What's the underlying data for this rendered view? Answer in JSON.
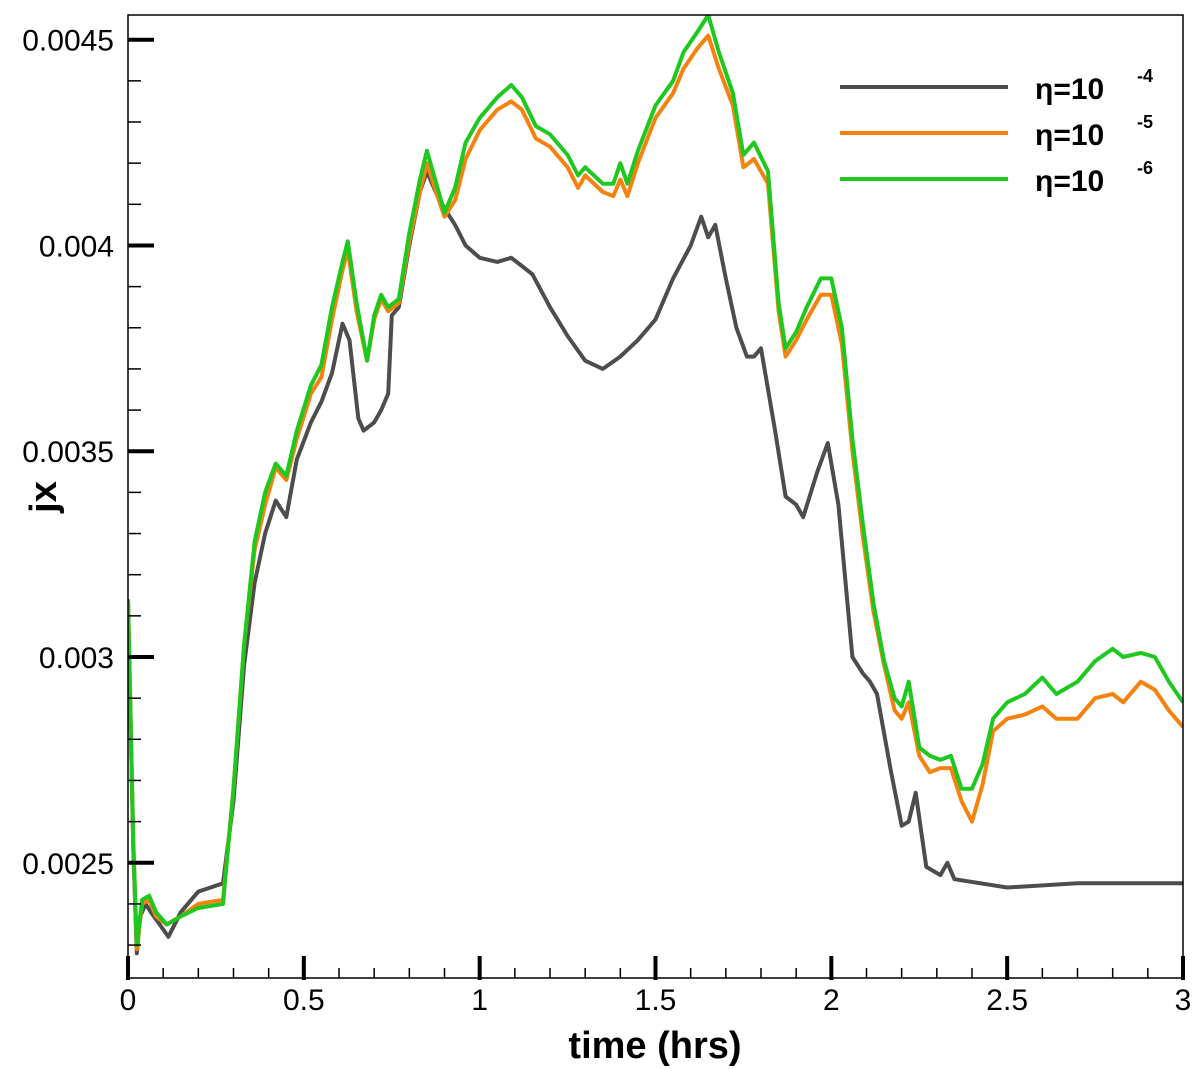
{
  "chart_data": {
    "type": "line",
    "xlabel": "time (hrs)",
    "ylabel": "jx",
    "xlim": [
      0,
      3
    ],
    "ylim": [
      0.00222,
      0.00456
    ],
    "x_ticks": [
      0,
      0.5,
      1,
      1.5,
      2,
      2.5,
      3
    ],
    "x_tick_labels": [
      "0",
      "0.5",
      "1",
      "1.5",
      "2",
      "2.5",
      "3"
    ],
    "y_ticks": [
      0.0025,
      0.003,
      0.0035,
      0.004,
      0.0045
    ],
    "y_tick_labels": [
      "0.0025",
      "0.003",
      "0.0035",
      "0.004",
      "0.0045"
    ],
    "grid": false,
    "legend_position": "top-right",
    "series": [
      {
        "name_base": "η=10",
        "name_exp": "-4",
        "color": "#4d4d4d",
        "points": [
          [
            0,
            0.00314
          ],
          [
            0.015,
            0.00253
          ],
          [
            0.025,
            0.00228
          ],
          [
            0.035,
            0.00237
          ],
          [
            0.05,
            0.0024
          ],
          [
            0.065,
            0.00238
          ],
          [
            0.09,
            0.00235
          ],
          [
            0.115,
            0.00232
          ],
          [
            0.15,
            0.00238
          ],
          [
            0.2,
            0.00243
          ],
          [
            0.27,
            0.00245
          ],
          [
            0.3,
            0.00265
          ],
          [
            0.33,
            0.00298
          ],
          [
            0.36,
            0.00318
          ],
          [
            0.39,
            0.0033
          ],
          [
            0.42,
            0.00338
          ],
          [
            0.45,
            0.00334
          ],
          [
            0.48,
            0.00348
          ],
          [
            0.52,
            0.00357
          ],
          [
            0.55,
            0.00362
          ],
          [
            0.58,
            0.00369
          ],
          [
            0.61,
            0.00381
          ],
          [
            0.63,
            0.00377
          ],
          [
            0.655,
            0.00358
          ],
          [
            0.67,
            0.00355
          ],
          [
            0.7,
            0.00357
          ],
          [
            0.72,
            0.0036
          ],
          [
            0.74,
            0.00364
          ],
          [
            0.75,
            0.00383
          ],
          [
            0.77,
            0.00385
          ],
          [
            0.8,
            0.004
          ],
          [
            0.83,
            0.00413
          ],
          [
            0.85,
            0.00418
          ],
          [
            0.88,
            0.00412
          ],
          [
            0.9,
            0.00409
          ],
          [
            0.93,
            0.00405
          ],
          [
            0.96,
            0.004
          ],
          [
            1.0,
            0.00397
          ],
          [
            1.05,
            0.00396
          ],
          [
            1.09,
            0.00397
          ],
          [
            1.12,
            0.00395
          ],
          [
            1.15,
            0.00393
          ],
          [
            1.2,
            0.00385
          ],
          [
            1.25,
            0.00378
          ],
          [
            1.3,
            0.00372
          ],
          [
            1.35,
            0.0037
          ],
          [
            1.4,
            0.00373
          ],
          [
            1.45,
            0.00377
          ],
          [
            1.5,
            0.00382
          ],
          [
            1.55,
            0.00392
          ],
          [
            1.6,
            0.004
          ],
          [
            1.63,
            0.00407
          ],
          [
            1.65,
            0.00402
          ],
          [
            1.67,
            0.00405
          ],
          [
            1.7,
            0.00392
          ],
          [
            1.73,
            0.0038
          ],
          [
            1.76,
            0.00373
          ],
          [
            1.78,
            0.00373
          ],
          [
            1.8,
            0.00375
          ],
          [
            1.84,
            0.00355
          ],
          [
            1.87,
            0.00339
          ],
          [
            1.9,
            0.00337
          ],
          [
            1.92,
            0.00334
          ],
          [
            1.96,
            0.00345
          ],
          [
            1.99,
            0.00352
          ],
          [
            2.02,
            0.00337
          ],
          [
            2.06,
            0.003
          ],
          [
            2.09,
            0.00296
          ],
          [
            2.11,
            0.00294
          ],
          [
            2.13,
            0.00291
          ],
          [
            2.17,
            0.00272
          ],
          [
            2.2,
            0.00259
          ],
          [
            2.22,
            0.0026
          ],
          [
            2.24,
            0.00267
          ],
          [
            2.27,
            0.00249
          ],
          [
            2.31,
            0.00247
          ],
          [
            2.33,
            0.0025
          ],
          [
            2.35,
            0.00246
          ],
          [
            2.5,
            0.00244
          ],
          [
            2.7,
            0.00245
          ],
          [
            3.0,
            0.00245
          ]
        ]
      },
      {
        "name_base": "η=10",
        "name_exp": "-5",
        "color": "#f5820f",
        "points": [
          [
            0,
            0.00314
          ],
          [
            0.015,
            0.00255
          ],
          [
            0.025,
            0.00229
          ],
          [
            0.04,
            0.0024
          ],
          [
            0.06,
            0.00241
          ],
          [
            0.08,
            0.00237
          ],
          [
            0.11,
            0.00235
          ],
          [
            0.15,
            0.00237
          ],
          [
            0.2,
            0.0024
          ],
          [
            0.27,
            0.00241
          ],
          [
            0.3,
            0.00268
          ],
          [
            0.33,
            0.00303
          ],
          [
            0.36,
            0.00326
          ],
          [
            0.39,
            0.00337
          ],
          [
            0.42,
            0.00346
          ],
          [
            0.45,
            0.00343
          ],
          [
            0.48,
            0.00353
          ],
          [
            0.52,
            0.00364
          ],
          [
            0.55,
            0.00368
          ],
          [
            0.58,
            0.00382
          ],
          [
            0.61,
            0.00394
          ],
          [
            0.625,
            0.00399
          ],
          [
            0.65,
            0.00384
          ],
          [
            0.68,
            0.00372
          ],
          [
            0.7,
            0.00382
          ],
          [
            0.72,
            0.00387
          ],
          [
            0.74,
            0.00384
          ],
          [
            0.77,
            0.00386
          ],
          [
            0.8,
            0.00401
          ],
          [
            0.83,
            0.00413
          ],
          [
            0.85,
            0.0042
          ],
          [
            0.88,
            0.00412
          ],
          [
            0.9,
            0.00407
          ],
          [
            0.93,
            0.00411
          ],
          [
            0.96,
            0.00421
          ],
          [
            1.0,
            0.00428
          ],
          [
            1.05,
            0.00433
          ],
          [
            1.09,
            0.00435
          ],
          [
            1.12,
            0.00433
          ],
          [
            1.16,
            0.00426
          ],
          [
            1.2,
            0.00424
          ],
          [
            1.25,
            0.00419
          ],
          [
            1.28,
            0.00414
          ],
          [
            1.3,
            0.00417
          ],
          [
            1.35,
            0.00413
          ],
          [
            1.38,
            0.00412
          ],
          [
            1.4,
            0.00416
          ],
          [
            1.42,
            0.00412
          ],
          [
            1.45,
            0.0042
          ],
          [
            1.5,
            0.00431
          ],
          [
            1.55,
            0.00437
          ],
          [
            1.58,
            0.00443
          ],
          [
            1.62,
            0.00448
          ],
          [
            1.65,
            0.00451
          ],
          [
            1.68,
            0.00443
          ],
          [
            1.72,
            0.00434
          ],
          [
            1.75,
            0.00419
          ],
          [
            1.78,
            0.00421
          ],
          [
            1.82,
            0.00415
          ],
          [
            1.85,
            0.00384
          ],
          [
            1.87,
            0.00373
          ],
          [
            1.9,
            0.00377
          ],
          [
            1.93,
            0.00382
          ],
          [
            1.97,
            0.00388
          ],
          [
            2.0,
            0.00388
          ],
          [
            2.03,
            0.00376
          ],
          [
            2.06,
            0.0035
          ],
          [
            2.09,
            0.00329
          ],
          [
            2.12,
            0.00311
          ],
          [
            2.15,
            0.00298
          ],
          [
            2.18,
            0.00287
          ],
          [
            2.2,
            0.00285
          ],
          [
            2.22,
            0.00289
          ],
          [
            2.25,
            0.00276
          ],
          [
            2.28,
            0.00272
          ],
          [
            2.31,
            0.00273
          ],
          [
            2.34,
            0.00273
          ],
          [
            2.37,
            0.00265
          ],
          [
            2.4,
            0.0026
          ],
          [
            2.43,
            0.00269
          ],
          [
            2.46,
            0.00282
          ],
          [
            2.5,
            0.00285
          ],
          [
            2.55,
            0.00286
          ],
          [
            2.6,
            0.00288
          ],
          [
            2.64,
            0.00285
          ],
          [
            2.7,
            0.00285
          ],
          [
            2.75,
            0.0029
          ],
          [
            2.8,
            0.00291
          ],
          [
            2.83,
            0.00289
          ],
          [
            2.88,
            0.00294
          ],
          [
            2.92,
            0.00292
          ],
          [
            2.96,
            0.00287
          ],
          [
            3.0,
            0.00283
          ]
        ]
      },
      {
        "name_base": "η=10",
        "name_exp": "-6",
        "color": "#1ec81e",
        "points": [
          [
            0,
            0.00314
          ],
          [
            0.015,
            0.00255
          ],
          [
            0.025,
            0.0023
          ],
          [
            0.04,
            0.00241
          ],
          [
            0.06,
            0.00242
          ],
          [
            0.08,
            0.00238
          ],
          [
            0.11,
            0.00235
          ],
          [
            0.15,
            0.00237
          ],
          [
            0.2,
            0.00239
          ],
          [
            0.27,
            0.0024
          ],
          [
            0.3,
            0.00268
          ],
          [
            0.33,
            0.00303
          ],
          [
            0.36,
            0.00328
          ],
          [
            0.39,
            0.0034
          ],
          [
            0.42,
            0.00347
          ],
          [
            0.45,
            0.00344
          ],
          [
            0.48,
            0.00355
          ],
          [
            0.52,
            0.00366
          ],
          [
            0.55,
            0.00371
          ],
          [
            0.58,
            0.00385
          ],
          [
            0.61,
            0.00396
          ],
          [
            0.625,
            0.00401
          ],
          [
            0.65,
            0.00386
          ],
          [
            0.68,
            0.00372
          ],
          [
            0.7,
            0.00383
          ],
          [
            0.72,
            0.00388
          ],
          [
            0.74,
            0.00385
          ],
          [
            0.77,
            0.00387
          ],
          [
            0.8,
            0.00403
          ],
          [
            0.83,
            0.00416
          ],
          [
            0.85,
            0.00423
          ],
          [
            0.88,
            0.00414
          ],
          [
            0.9,
            0.00408
          ],
          [
            0.93,
            0.00414
          ],
          [
            0.96,
            0.00425
          ],
          [
            1.0,
            0.00431
          ],
          [
            1.05,
            0.00436
          ],
          [
            1.09,
            0.00439
          ],
          [
            1.12,
            0.00436
          ],
          [
            1.16,
            0.00429
          ],
          [
            1.2,
            0.00427
          ],
          [
            1.25,
            0.00422
          ],
          [
            1.28,
            0.00417
          ],
          [
            1.3,
            0.00419
          ],
          [
            1.35,
            0.00415
          ],
          [
            1.38,
            0.00415
          ],
          [
            1.4,
            0.0042
          ],
          [
            1.42,
            0.00415
          ],
          [
            1.45,
            0.00423
          ],
          [
            1.5,
            0.00434
          ],
          [
            1.55,
            0.0044
          ],
          [
            1.58,
            0.00447
          ],
          [
            1.62,
            0.00452
          ],
          [
            1.65,
            0.00456
          ],
          [
            1.68,
            0.00447
          ],
          [
            1.72,
            0.00437
          ],
          [
            1.75,
            0.00422
          ],
          [
            1.78,
            0.00425
          ],
          [
            1.82,
            0.00418
          ],
          [
            1.85,
            0.00386
          ],
          [
            1.87,
            0.00375
          ],
          [
            1.9,
            0.00379
          ],
          [
            1.93,
            0.00385
          ],
          [
            1.97,
            0.00392
          ],
          [
            2.0,
            0.00392
          ],
          [
            2.03,
            0.0038
          ],
          [
            2.06,
            0.00353
          ],
          [
            2.09,
            0.00332
          ],
          [
            2.12,
            0.00313
          ],
          [
            2.15,
            0.00299
          ],
          [
            2.18,
            0.0029
          ],
          [
            2.2,
            0.00288
          ],
          [
            2.22,
            0.00294
          ],
          [
            2.25,
            0.00278
          ],
          [
            2.28,
            0.00276
          ],
          [
            2.31,
            0.00275
          ],
          [
            2.34,
            0.00276
          ],
          [
            2.37,
            0.00268
          ],
          [
            2.4,
            0.00268
          ],
          [
            2.43,
            0.00274
          ],
          [
            2.46,
            0.00285
          ],
          [
            2.5,
            0.00289
          ],
          [
            2.55,
            0.00291
          ],
          [
            2.6,
            0.00295
          ],
          [
            2.64,
            0.00291
          ],
          [
            2.7,
            0.00294
          ],
          [
            2.75,
            0.00299
          ],
          [
            2.8,
            0.00302
          ],
          [
            2.83,
            0.003
          ],
          [
            2.88,
            0.00301
          ],
          [
            2.92,
            0.003
          ],
          [
            2.96,
            0.00294
          ],
          [
            3.0,
            0.00289
          ]
        ]
      }
    ]
  }
}
